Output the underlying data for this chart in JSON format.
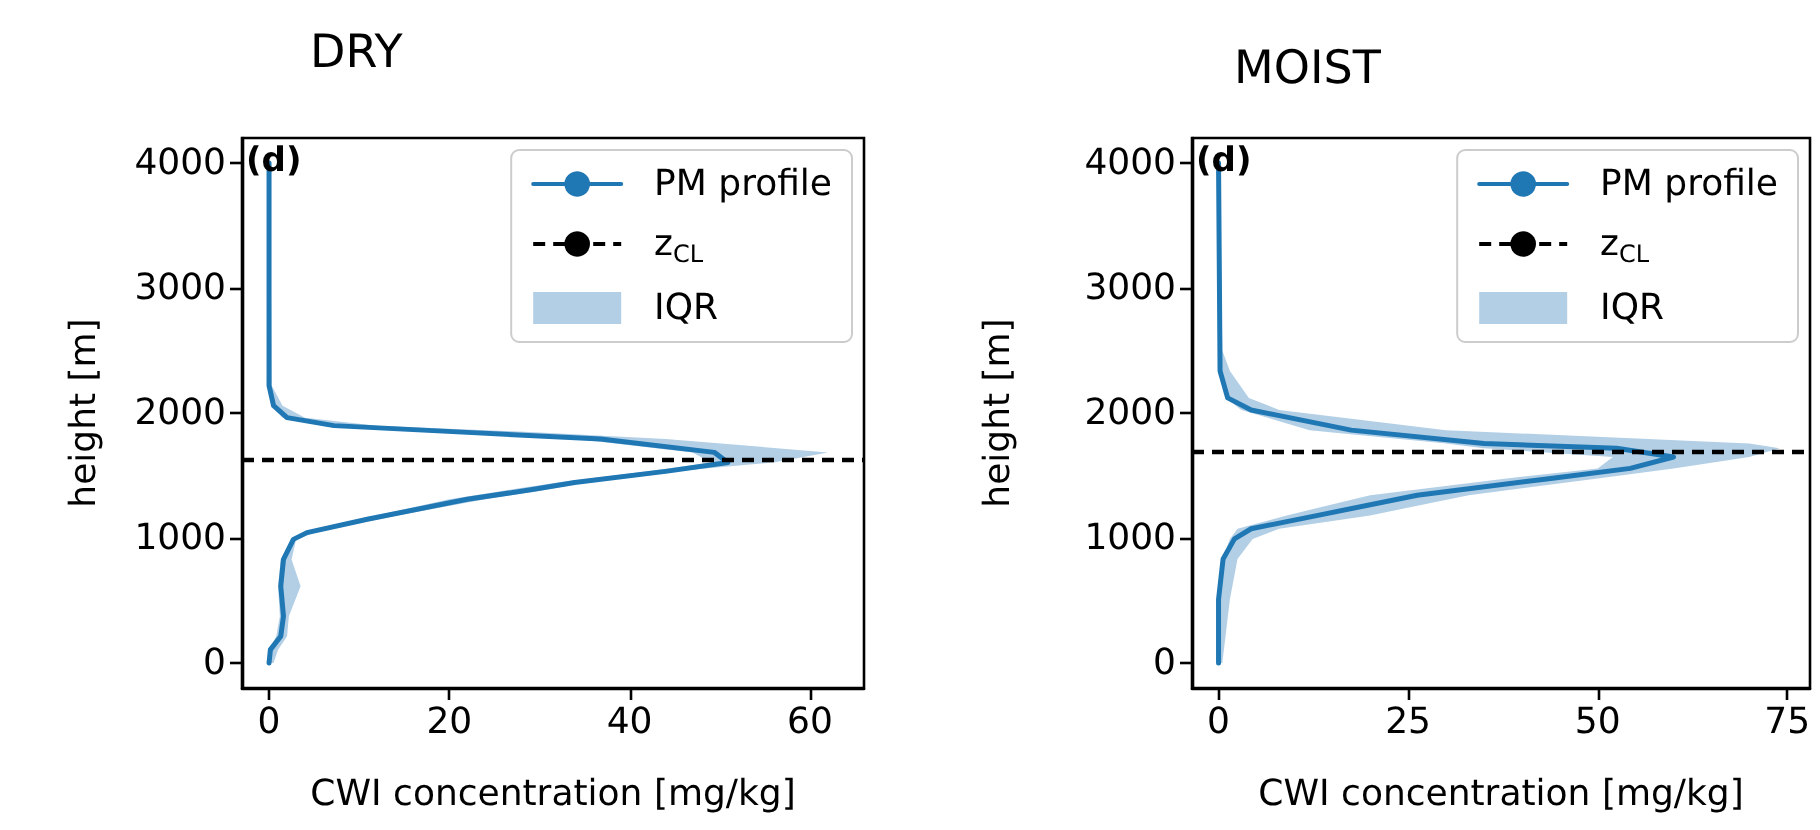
{
  "chart_data": [
    {
      "type": "line",
      "title": "DRY",
      "xlabel": "CWI concentration [mg/kg]",
      "ylabel": "height [m]",
      "annotations": [
        "(d)"
      ],
      "legend": "top right",
      "xlim": [
        -3,
        66
      ],
      "xticks": [
        0,
        20,
        40,
        60
      ],
      "ylim": [
        -200,
        4200
      ],
      "yticks": [
        0,
        1000,
        2000,
        3000,
        4000
      ],
      "series": [
        {
          "name": "PM profile",
          "color": "#1f77b4",
          "x": [
            0,
            0.15,
            1.3,
            1.6,
            1.3,
            1.6,
            2.7,
            4.2,
            10.9,
            22,
            29.4,
            33.9,
            44.2,
            50.9,
            49.4,
            36.8,
            22,
            7.2,
            2,
            0.5,
            0,
            0
          ],
          "values": [
            0,
            107,
            214,
            374,
            615,
            829,
            989,
            1043,
            1150,
            1310,
            1390,
            1444,
            1535,
            1604,
            1685,
            1792,
            1845,
            1899,
            1963,
            2059,
            2219,
            4000
          ]
        },
        {
          "name": "IQR",
          "type": "area",
          "color": "#b3cfe6",
          "x": [
            0,
            0,
            0.8,
            1.2,
            1.0,
            1.3,
            2.5,
            3.8,
            10,
            20,
            27,
            32,
            42,
            49,
            47,
            34,
            20,
            6,
            1.5,
            0.3,
            0,
            0,
            0.1,
            0.3,
            1.5,
            4,
            12,
            30,
            44,
            62,
            56,
            45,
            35,
            31,
            24,
            12,
            5,
            3,
            2.5,
            3.5,
            2.2,
            2,
            1,
            0.5
          ],
          "values": [
            0,
            107,
            214,
            374,
            615,
            829,
            989,
            1043,
            1150,
            1310,
            1390,
            1444,
            1535,
            1604,
            1685,
            1792,
            1845,
            1899,
            1963,
            2059,
            2219,
            4000,
            4000,
            2219,
            2059,
            1963,
            1899,
            1845,
            1792,
            1685,
            1604,
            1535,
            1444,
            1390,
            1310,
            1150,
            1043,
            989,
            829,
            615,
            374,
            214,
            107,
            0
          ]
        }
      ],
      "ref_lines": [
        {
          "axis": "y",
          "value": 1630,
          "label": "z$_{CL}$",
          "color": "#000000",
          "line_style": "dashed"
        }
      ]
    },
    {
      "type": "line",
      "title": "MOIST",
      "xlabel": "CWI concentration [mg/kg]",
      "ylabel": "height [m]",
      "annotations": [
        "(d)"
      ],
      "legend": "top right",
      "xlim": [
        -3.5,
        78
      ],
      "xticks": [
        0,
        25,
        50,
        75
      ],
      "ylim": [
        -200,
        4200
      ],
      "yticks": [
        0,
        1000,
        2000,
        3000,
        4000
      ],
      "series": [
        {
          "name": "PM profile",
          "color": "#1f77b4",
          "x": [
            0,
            0,
            0.6,
            2.1,
            4.3,
            13.1,
            26.2,
            43.8,
            54.3,
            60,
            52.5,
            35,
            17.5,
            4.3,
            1.2,
            0.2,
            0
          ],
          "values": [
            0,
            510,
            832,
            993,
            1074,
            1181,
            1342,
            1476,
            1557,
            1648,
            1718,
            1756,
            1863,
            2024,
            2121,
            2336,
            4000
          ]
        },
        {
          "name": "IQR",
          "type": "area",
          "color": "#b3cfe6",
          "x": [
            0,
            0,
            0.5,
            1.5,
            2.5,
            9,
            20,
            38,
            50,
            52,
            35,
            30,
            12,
            3,
            1,
            0.2,
            0,
            0,
            0.1,
            0.5,
            1.5,
            4,
            8,
            30,
            70,
            74,
            70,
            60,
            50,
            33,
            20,
            8,
            4.5,
            2.5,
            1.5,
            0.5
          ],
          "values": [
            0,
            510,
            832,
            993,
            1074,
            1181,
            1342,
            1476,
            1557,
            1648,
            1718,
            1756,
            1863,
            2024,
            2121,
            2336,
            2500,
            4000,
            4000,
            2500,
            2336,
            2121,
            2024,
            1863,
            1756,
            1718,
            1648,
            1557,
            1476,
            1342,
            1181,
            1074,
            993,
            832,
            510,
            0
          ]
        }
      ],
      "ref_lines": [
        {
          "axis": "y",
          "value": 1700,
          "label": "z$_{CL}$",
          "color": "#000000",
          "line_style": "dashed"
        }
      ]
    }
  ]
}
